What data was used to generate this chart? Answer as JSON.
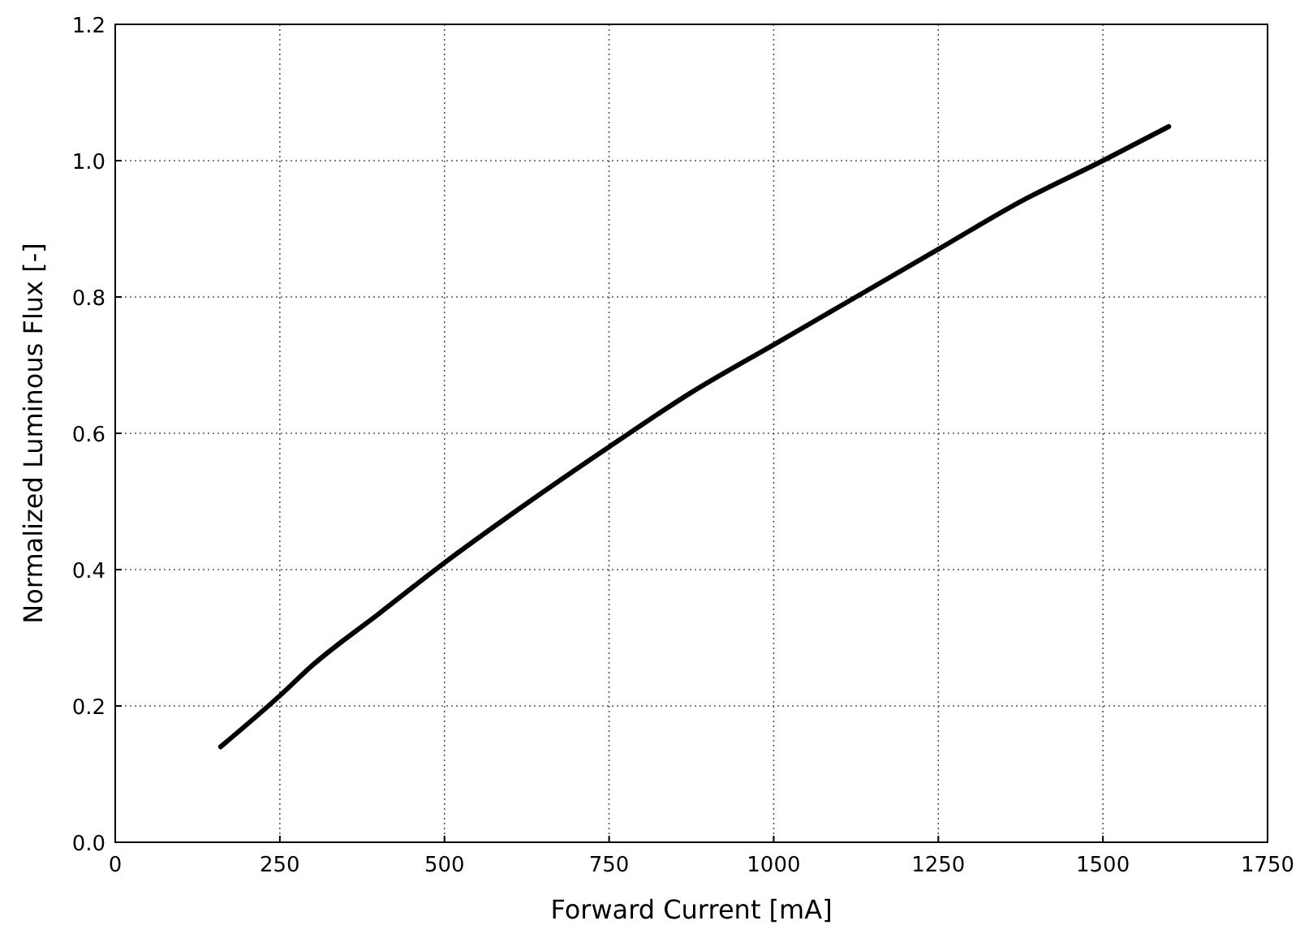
{
  "chart_data": {
    "type": "line",
    "xlabel": "Forward Current [mA]",
    "ylabel": "Normalized Luminous Flux [-]",
    "x": [
      160,
      250,
      300,
      400,
      500,
      600,
      750,
      875,
      1000,
      1125,
      1250,
      1375,
      1500,
      1600
    ],
    "series": [
      {
        "color": "#000000",
        "values": [
          0.14,
          0.215,
          0.26,
          0.335,
          0.41,
          0.48,
          0.58,
          0.66,
          0.73,
          0.8,
          0.87,
          0.94,
          1.0,
          1.05
        ]
      }
    ],
    "xlim": [
      0,
      1750
    ],
    "xticks": [
      0,
      250,
      500,
      750,
      1000,
      1250,
      1500,
      1750
    ],
    "ylim": [
      0,
      1.2
    ],
    "yticks": [
      {
        "value": 0,
        "label": "0.0"
      },
      {
        "value": 0.2,
        "label": "0.2"
      },
      {
        "value": 0.4,
        "label": "0.4"
      },
      {
        "value": 0.6,
        "label": "0.6"
      },
      {
        "value": 0.8,
        "label": "0.8"
      },
      {
        "value": 1.0,
        "label": "1.0"
      },
      {
        "value": 1.2,
        "label": "1.2"
      }
    ],
    "grid": true,
    "marker": "none",
    "line_style": "solid"
  }
}
